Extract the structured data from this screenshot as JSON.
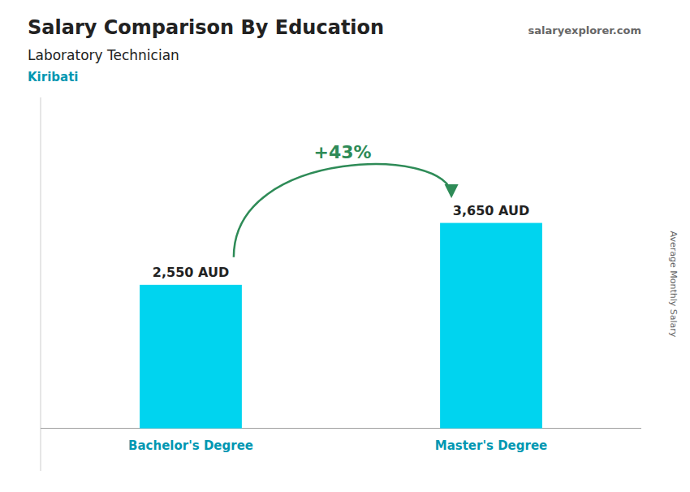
{
  "chart_data": {
    "type": "bar",
    "title": "Salary Comparison By Education",
    "subtitle": "Laboratory Technician",
    "ylabel": "Average Monthly Salary",
    "annotations": [
      "Kiribati",
      "+43%",
      "salaryexplorer.com"
    ],
    "categories": [
      "Bachelor's Degree",
      "Master's Degree"
    ],
    "values": [
      2550,
      3650
    ],
    "value_labels": [
      "2,550 AUD",
      "3,650 AUD"
    ],
    "data_labels": true,
    "color": "#00d4ef",
    "ylim": [
      -756,
      5880
    ],
    "tick_labels": false,
    "grid": false
  }
}
